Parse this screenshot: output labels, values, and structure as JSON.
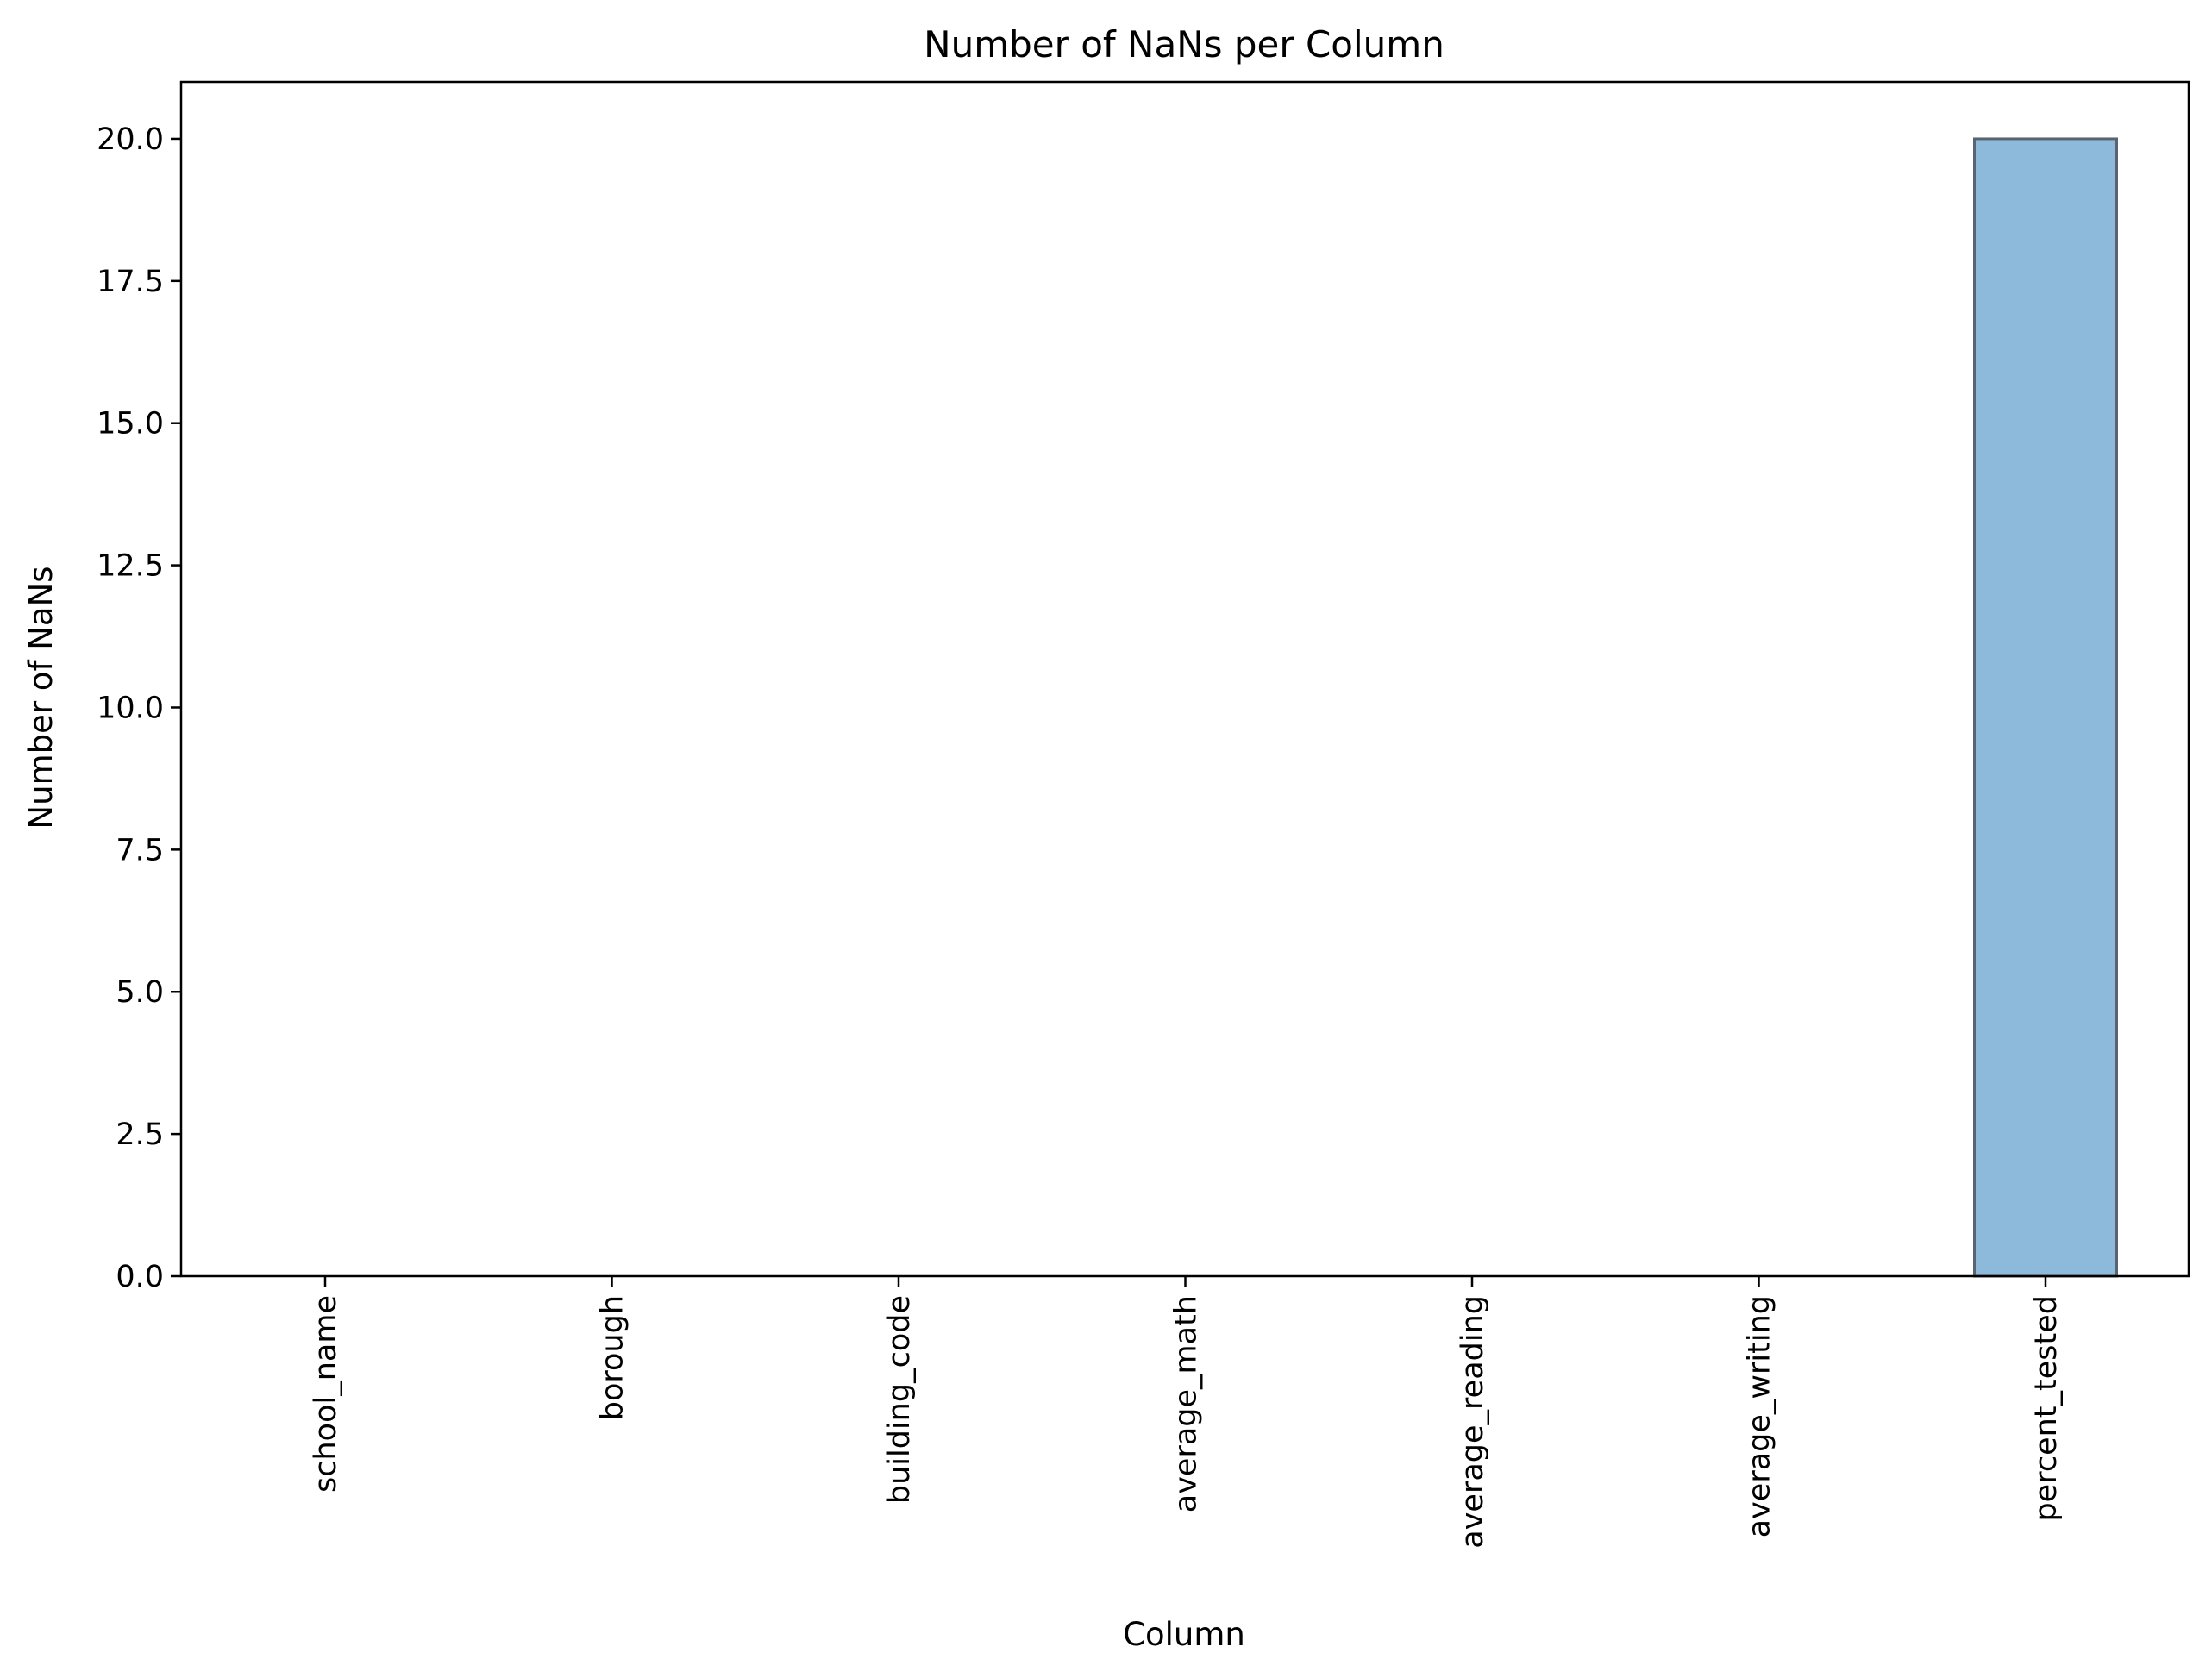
{
  "chart_data": {
    "type": "bar",
    "title": "Number of NaNs per Column",
    "xlabel": "Column",
    "ylabel": "Number of NaNs",
    "categories": [
      "school_name",
      "borough",
      "building_code",
      "average_math",
      "average_reading",
      "average_writing",
      "percent_tested"
    ],
    "values": [
      0,
      0,
      0,
      0,
      0,
      0,
      20
    ],
    "ylim": [
      0,
      21
    ],
    "yticks": [
      "0.0",
      "2.5",
      "5.0",
      "7.5",
      "10.0",
      "12.5",
      "15.0",
      "17.5",
      "20.0"
    ],
    "grid": false,
    "legend": "none",
    "bar_color": "#8db9da",
    "bar_edge_color": "#5a6470"
  }
}
